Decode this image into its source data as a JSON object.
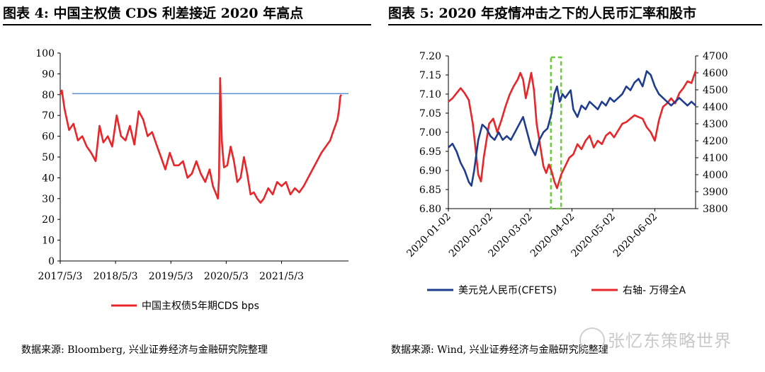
{
  "header": {
    "left_title": "图表 4:  中国主权债 CDS 利差接近 2020 年高点",
    "right_title": "图表 5:  2020 年疫情冲击之下的人民币汇率和股市"
  },
  "footer": {
    "left_source": "数据来源:  Bloomberg, 兴业证券经济与金融研究院整理",
    "right_source": "数据来源:  Wind, 兴业证券经济与金融研究院整理",
    "watermark": "张忆东策略世界"
  },
  "colors": {
    "red": "#e8262a",
    "blue": "#1f3d8f",
    "hline": "#5b8fd6",
    "box": "#6ccb3c"
  },
  "chart_data": [
    {
      "type": "line",
      "xlabel": "",
      "ylabel": "",
      "ylim": [
        0,
        100
      ],
      "yticks": [
        "100",
        "90",
        "80",
        "70",
        "60",
        "50",
        "40",
        "30",
        "20",
        "10",
        "0"
      ],
      "xticks": [
        "2017/5/3",
        "2018/5/3",
        "2019/5/3",
        "2020/5/3",
        "2021/5/3"
      ],
      "reference_line": 80.5,
      "legend": {
        "position": "bottom",
        "entries": [
          "中国主权债5年期CDS bps"
        ]
      },
      "series": [
        {
          "name": "中国主权债5年期CDS bps",
          "color": "#e8262a",
          "x": [
            2017.34,
            2017.37,
            2017.42,
            2017.5,
            2017.58,
            2017.66,
            2017.74,
            2017.82,
            2017.9,
            2017.98,
            2018.05,
            2018.12,
            2018.2,
            2018.28,
            2018.36,
            2018.44,
            2018.52,
            2018.6,
            2018.68,
            2018.76,
            2018.84,
            2018.92,
            2019.0,
            2019.08,
            2019.16,
            2019.24,
            2019.32,
            2019.4,
            2019.48,
            2019.56,
            2019.64,
            2019.72,
            2019.8,
            2019.88,
            2019.96,
            2020.04,
            2020.1,
            2020.16,
            2020.19,
            2020.21,
            2020.23,
            2020.26,
            2020.3,
            2020.36,
            2020.42,
            2020.48,
            2020.54,
            2020.6,
            2020.66,
            2020.72,
            2020.78,
            2020.84,
            2020.9,
            2020.96,
            2021.02,
            2021.1,
            2021.18,
            2021.26,
            2021.34,
            2021.42,
            2021.5,
            2021.58,
            2021.66,
            2021.74,
            2021.82,
            2021.9,
            2021.98,
            2022.06,
            2022.14,
            2022.22,
            2022.27,
            2022.31,
            2022.35,
            2022.38,
            2022.4,
            2022.42
          ],
          "y": [
            80,
            82,
            73,
            63,
            66,
            58,
            60,
            55,
            52,
            48,
            65,
            57,
            60,
            55,
            70,
            60,
            58,
            65,
            56,
            72,
            68,
            60,
            62,
            56,
            50,
            44,
            52,
            46,
            46,
            48,
            40,
            42,
            48,
            42,
            38,
            44,
            36,
            32,
            30,
            40,
            88,
            58,
            45,
            46,
            55,
            48,
            38,
            40,
            50,
            42,
            32,
            33,
            30,
            28,
            30,
            35,
            32,
            38,
            36,
            38,
            32,
            35,
            33,
            36,
            40,
            44,
            48,
            52,
            55,
            58,
            62,
            65,
            68,
            73,
            79,
            80
          ]
        }
      ]
    },
    {
      "type": "line",
      "xlabel": "",
      "ylabel": "",
      "ylim": [
        6.8,
        7.2
      ],
      "y2lim": [
        3800,
        4700
      ],
      "yticks": [
        "7.20",
        "7.15",
        "7.10",
        "7.05",
        "7.00",
        "6.95",
        "6.90",
        "6.85",
        "6.80"
      ],
      "y2ticks": [
        "4700",
        "4600",
        "4500",
        "4400",
        "4300",
        "4200",
        "4100",
        "4000",
        "3900",
        "3800"
      ],
      "xticks": [
        "2020-01-02",
        "2020-02-02",
        "2020-03-02",
        "2020-04-02",
        "2020-05-02",
        "2020-06-02"
      ],
      "legend": {
        "position": "bottom",
        "entries": [
          "美元兑人民币(CFETS)",
          "右轴- 万得全A"
        ]
      },
      "series": [
        {
          "name": "美元兑人民币(CFETS)",
          "axis": "left",
          "color": "#1f3d8f",
          "x": [
            0,
            3,
            6,
            9,
            12,
            15,
            17,
            19,
            22,
            25,
            28,
            31,
            34,
            37,
            40,
            43,
            46,
            49,
            52,
            55,
            58,
            61,
            64,
            67,
            70,
            73,
            76,
            78,
            80,
            82,
            84,
            86,
            88,
            90,
            92,
            95,
            98,
            101,
            104,
            107,
            110,
            113,
            116,
            119,
            122,
            125,
            128,
            131,
            134,
            137,
            140,
            143,
            146,
            149,
            152,
            155,
            158,
            161,
            164,
            167,
            170,
            173,
            176,
            179,
            182
          ],
          "y": [
            6.96,
            6.97,
            6.95,
            6.92,
            6.9,
            6.87,
            6.86,
            6.9,
            6.98,
            7.02,
            7.01,
            6.99,
            6.98,
            7.0,
            6.98,
            6.99,
            6.98,
            7.0,
            7.02,
            7.04,
            7.0,
            6.96,
            6.94,
            6.98,
            7.0,
            7.01,
            7.05,
            7.1,
            7.12,
            7.08,
            7.1,
            7.09,
            7.1,
            7.11,
            7.06,
            7.04,
            7.07,
            7.06,
            7.08,
            7.07,
            7.06,
            7.08,
            7.07,
            7.09,
            7.08,
            7.09,
            7.1,
            7.12,
            7.11,
            7.13,
            7.14,
            7.12,
            7.16,
            7.15,
            7.12,
            7.1,
            7.09,
            7.08,
            7.07,
            7.08,
            7.09,
            7.08,
            7.07,
            7.08,
            7.07
          ]
        },
        {
          "name": "右轴- 万得全A",
          "axis": "right",
          "color": "#e8262a",
          "x": [
            0,
            3,
            6,
            9,
            12,
            15,
            18,
            20,
            22,
            24,
            26,
            28,
            30,
            33,
            36,
            39,
            42,
            45,
            48,
            51,
            53,
            55,
            57,
            59,
            61,
            63,
            65,
            67,
            70,
            72,
            74,
            76,
            78,
            80,
            83,
            86,
            89,
            92,
            95,
            98,
            101,
            104,
            107,
            110,
            113,
            116,
            119,
            122,
            125,
            128,
            131,
            134,
            137,
            140,
            143,
            146,
            149,
            152,
            155,
            158,
            161,
            164,
            167,
            170,
            173,
            176,
            179,
            182
          ],
          "y": [
            4430,
            4450,
            4480,
            4510,
            4480,
            4440,
            4300,
            4150,
            4000,
            3960,
            4100,
            4200,
            4300,
            4330,
            4250,
            4320,
            4400,
            4470,
            4520,
            4560,
            4600,
            4560,
            4450,
            4520,
            4600,
            4500,
            4300,
            4200,
            4050,
            4010,
            4060,
            4020,
            3960,
            3920,
            4000,
            4050,
            4100,
            4120,
            4180,
            4150,
            4200,
            4230,
            4160,
            4200,
            4180,
            4230,
            4250,
            4220,
            4260,
            4300,
            4310,
            4330,
            4350,
            4340,
            4330,
            4280,
            4250,
            4200,
            4320,
            4400,
            4420,
            4450,
            4420,
            4480,
            4510,
            4550,
            4540,
            4610
          ]
        }
      ]
    }
  ]
}
